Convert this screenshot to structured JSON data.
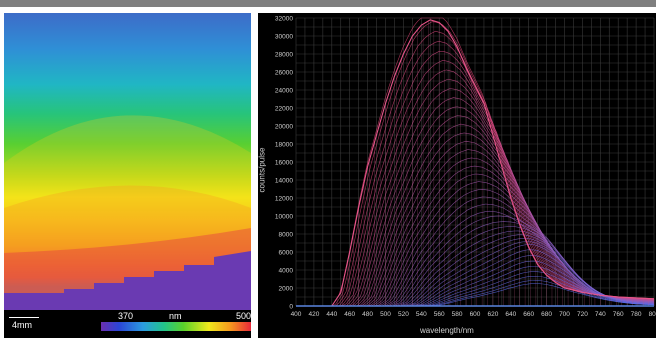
{
  "map": {
    "scalebar_label": "4mm",
    "colorbar_min": "370",
    "colorbar_unit": "nm",
    "colorbar_max": "500"
  },
  "chart_data": {
    "type": "line",
    "xlabel": "wavelength/nm",
    "ylabel": "counts/pulse",
    "xlim": [
      400,
      800
    ],
    "ylim": [
      0,
      32000
    ],
    "x_ticks": [
      400,
      420,
      440,
      460,
      480,
      500,
      520,
      540,
      560,
      580,
      600,
      620,
      640,
      660,
      680,
      700,
      720,
      740,
      760,
      780,
      800
    ],
    "y_ticks": [
      0,
      2000,
      4000,
      6000,
      8000,
      10000,
      12000,
      14000,
      16000,
      18000,
      20000,
      22000,
      24000,
      26000,
      28000,
      30000,
      32000
    ],
    "grid": true,
    "envelope": {
      "x": [
        400,
        440,
        450,
        460,
        470,
        480,
        490,
        500,
        510,
        520,
        530,
        540,
        550,
        560,
        570,
        580,
        590,
        600,
        610,
        620,
        630,
        640,
        650,
        660,
        670,
        680,
        690,
        700,
        720,
        740,
        760,
        780,
        800
      ],
      "y": [
        0,
        0,
        1500,
        6000,
        11000,
        15500,
        19000,
        22500,
        25500,
        28000,
        30000,
        31200,
        31800,
        31500,
        30500,
        28800,
        26500,
        24500,
        22500,
        19000,
        15500,
        12000,
        9000,
        6500,
        4600,
        3400,
        2600,
        2000,
        1500,
        1200,
        1000,
        900,
        800
      ]
    },
    "secondary_peak": {
      "x": 670,
      "y": 4600
    }
  }
}
